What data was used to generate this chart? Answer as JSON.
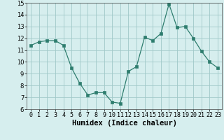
{
  "x": [
    0,
    1,
    2,
    3,
    4,
    5,
    6,
    7,
    8,
    9,
    10,
    11,
    12,
    13,
    14,
    15,
    16,
    17,
    18,
    19,
    20,
    21,
    22,
    23
  ],
  "y": [
    11.4,
    11.7,
    11.8,
    11.8,
    11.4,
    9.5,
    8.2,
    7.2,
    7.4,
    7.4,
    6.6,
    6.5,
    9.2,
    9.6,
    12.1,
    11.8,
    12.4,
    14.9,
    12.9,
    13.0,
    12.0,
    10.9,
    10.0,
    9.5
  ],
  "xlabel": "Humidex (Indice chaleur)",
  "xlim": [
    -0.5,
    23.5
  ],
  "ylim": [
    6,
    15
  ],
  "xticks": [
    0,
    1,
    2,
    3,
    4,
    5,
    6,
    7,
    8,
    9,
    10,
    11,
    12,
    13,
    14,
    15,
    16,
    17,
    18,
    19,
    20,
    21,
    22,
    23
  ],
  "yticks": [
    6,
    7,
    8,
    9,
    10,
    11,
    12,
    13,
    14,
    15
  ],
  "line_color": "#2e7d6e",
  "marker_color": "#2e7d6e",
  "bg_color": "#d6eeee",
  "grid_color": "#a0c8c8",
  "xlabel_fontsize": 7.5,
  "tick_fontsize": 6.0
}
